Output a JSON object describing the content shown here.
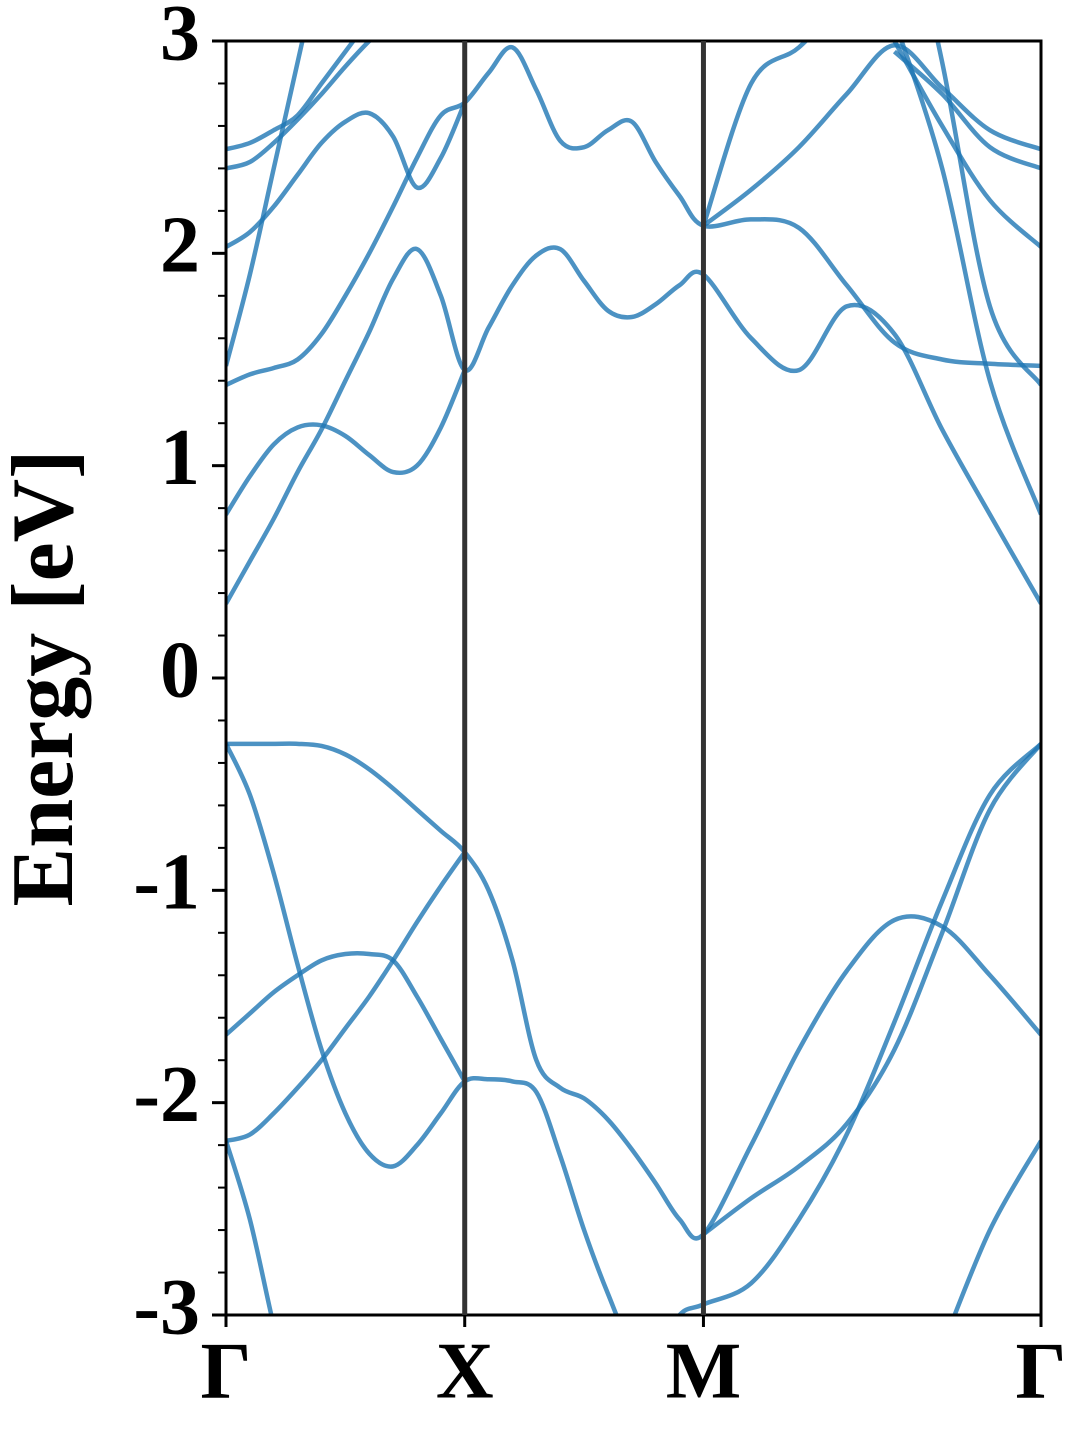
{
  "chart_data": {
    "type": "line",
    "y_label": "Energy [eV]",
    "color": "#1f77b4",
    "xgrid": true,
    "xlim": [
      0,
      1.707
    ],
    "ylim": [
      -3,
      3
    ],
    "xticks": [
      {
        "value": 0,
        "label": "Γ"
      },
      {
        "value": 0.5,
        "label": "X"
      },
      {
        "value": 1.0,
        "label": "M"
      },
      {
        "value": 1.707,
        "label": "Γ"
      }
    ],
    "yticks": [
      -3,
      -2,
      -1,
      0,
      1,
      2,
      3
    ],
    "yminorticks": [
      -2.8,
      -2.6,
      -2.4,
      -2.2,
      -1.8,
      -1.6,
      -1.4,
      -1.2,
      -0.8,
      -0.6,
      -0.4,
      -0.2,
      0.2,
      0.4,
      0.6,
      0.8,
      1.2,
      1.4,
      1.6,
      1.8,
      2.2,
      2.4,
      2.6,
      2.8
    ],
    "x": [
      0,
      0.05,
      0.1,
      0.15,
      0.2,
      0.25,
      0.3,
      0.35,
      0.4,
      0.45,
      0.5,
      0.55,
      0.6,
      0.65,
      0.7,
      0.75,
      0.8,
      0.85,
      0.9,
      0.95,
      1.0,
      1.1,
      1.2,
      1.3,
      1.4,
      1.5,
      1.6,
      1.707
    ],
    "series": [
      {
        "values": [
          -0.31,
          -0.31,
          -0.31,
          -0.31,
          -0.32,
          -0.36,
          -0.43,
          -0.52,
          -0.62,
          -0.72,
          -0.82,
          -1.0,
          -1.33,
          -1.8,
          -1.93,
          -1.98,
          -2.08,
          -2.22,
          -2.38,
          -2.55,
          -2.62,
          -2.2,
          -1.75,
          -1.38,
          -1.14,
          -1.17,
          -1.4,
          -1.68
        ]
      },
      {
        "values": [
          -0.31,
          -0.55,
          -0.92,
          -1.35,
          -1.75,
          -2.05,
          -2.24,
          -2.3,
          -2.2,
          -2.05,
          -1.9,
          -1.89,
          -1.9,
          -1.95,
          -2.25,
          -2.6,
          -2.9,
          -3.15,
          -3.2,
          -3.0,
          -2.95,
          -2.85,
          -2.55,
          -2.15,
          -1.62,
          -1.05,
          -0.55,
          -0.31
        ]
      },
      {
        "values": [
          -1.68,
          -1.58,
          -1.48,
          -1.4,
          -1.33,
          -1.3,
          -1.3,
          -1.33,
          -1.5,
          -1.7,
          -1.9,
          null,
          null,
          null,
          null,
          null,
          null,
          null,
          null,
          null,
          -2.62,
          -2.45,
          -2.3,
          -2.1,
          -1.75,
          -1.2,
          -0.62,
          -0.31
        ]
      },
      {
        "values": [
          -2.18,
          -2.15,
          -2.05,
          -1.93,
          -1.8,
          -1.65,
          -1.5,
          -1.33,
          -1.15,
          -0.98,
          -0.82,
          null,
          null,
          null,
          null,
          null,
          null,
          null,
          null,
          null,
          null,
          null,
          null,
          null,
          null,
          -3.15,
          -2.6,
          -2.18
        ]
      },
      {
        "values": [
          -2.18,
          -2.55,
          -3.05,
          -3.5,
          null,
          null,
          null,
          null,
          null,
          null,
          null,
          null,
          null,
          null,
          null,
          null,
          null,
          null,
          null,
          null,
          null,
          null,
          null,
          null,
          null,
          null,
          null,
          null
        ]
      },
      {
        "values": [
          0.35,
          0.55,
          0.75,
          0.97,
          1.17,
          1.4,
          1.63,
          1.88,
          2.02,
          1.8,
          1.45,
          1.65,
          1.85,
          1.99,
          2.02,
          1.87,
          1.73,
          1.7,
          1.76,
          1.85,
          1.9,
          1.6,
          1.45,
          1.75,
          1.62,
          1.17,
          0.77,
          0.35
        ]
      },
      {
        "values": [
          1.38,
          1.43,
          1.46,
          1.5,
          1.62,
          1.8,
          2.0,
          2.22,
          2.45,
          2.65,
          2.71,
          2.85,
          2.97,
          2.77,
          2.53,
          2.5,
          2.58,
          2.62,
          2.43,
          2.27,
          2.13,
          2.16,
          2.12,
          1.85,
          1.58,
          1.5,
          1.48,
          1.47
        ]
      },
      {
        "values": [
          0.77,
          0.95,
          1.1,
          1.18,
          1.19,
          1.14,
          1.05,
          0.97,
          1.0,
          1.18,
          1.45,
          null,
          null,
          null,
          null,
          null,
          null,
          null,
          null,
          null,
          null,
          null,
          null,
          null,
          3.1,
          2.4,
          1.4,
          0.77
        ]
      },
      {
        "values": [
          2.03,
          2.1,
          2.22,
          2.37,
          2.52,
          2.62,
          2.66,
          2.55,
          2.31,
          2.45,
          2.71,
          null,
          null,
          null,
          null,
          null,
          null,
          null,
          null,
          null,
          null,
          null,
          null,
          null,
          3.0,
          2.6,
          2.25,
          2.03
        ]
      },
      {
        "values": [
          1.47,
          1.9,
          2.4,
          2.9,
          3.4,
          null,
          null,
          null,
          null,
          null,
          null,
          null,
          null,
          null,
          null,
          null,
          null,
          null,
          null,
          null,
          null,
          null,
          null,
          null,
          3.9,
          2.9,
          1.75,
          1.38
        ]
      },
      {
        "values": [
          2.4,
          2.43,
          2.52,
          2.63,
          2.75,
          2.88,
          3.0,
          3.1,
          null,
          null,
          null,
          null,
          null,
          null,
          null,
          null,
          null,
          null,
          null,
          null,
          null,
          null,
          null,
          null,
          2.95,
          2.75,
          2.5,
          2.4
        ]
      },
      {
        "values": [
          2.49,
          2.52,
          2.58,
          2.65,
          2.8,
          2.95,
          3.1,
          null,
          null,
          null,
          null,
          null,
          null,
          null,
          null,
          null,
          null,
          null,
          null,
          null,
          2.13,
          2.3,
          2.5,
          2.75,
          2.98,
          2.78,
          2.58,
          2.49
        ]
      },
      {
        "values": [
          null,
          null,
          null,
          null,
          null,
          null,
          null,
          null,
          null,
          null,
          null,
          null,
          null,
          null,
          null,
          null,
          null,
          null,
          null,
          null,
          2.13,
          2.8,
          2.97,
          3.2,
          null,
          null,
          null,
          null
        ]
      }
    ]
  }
}
